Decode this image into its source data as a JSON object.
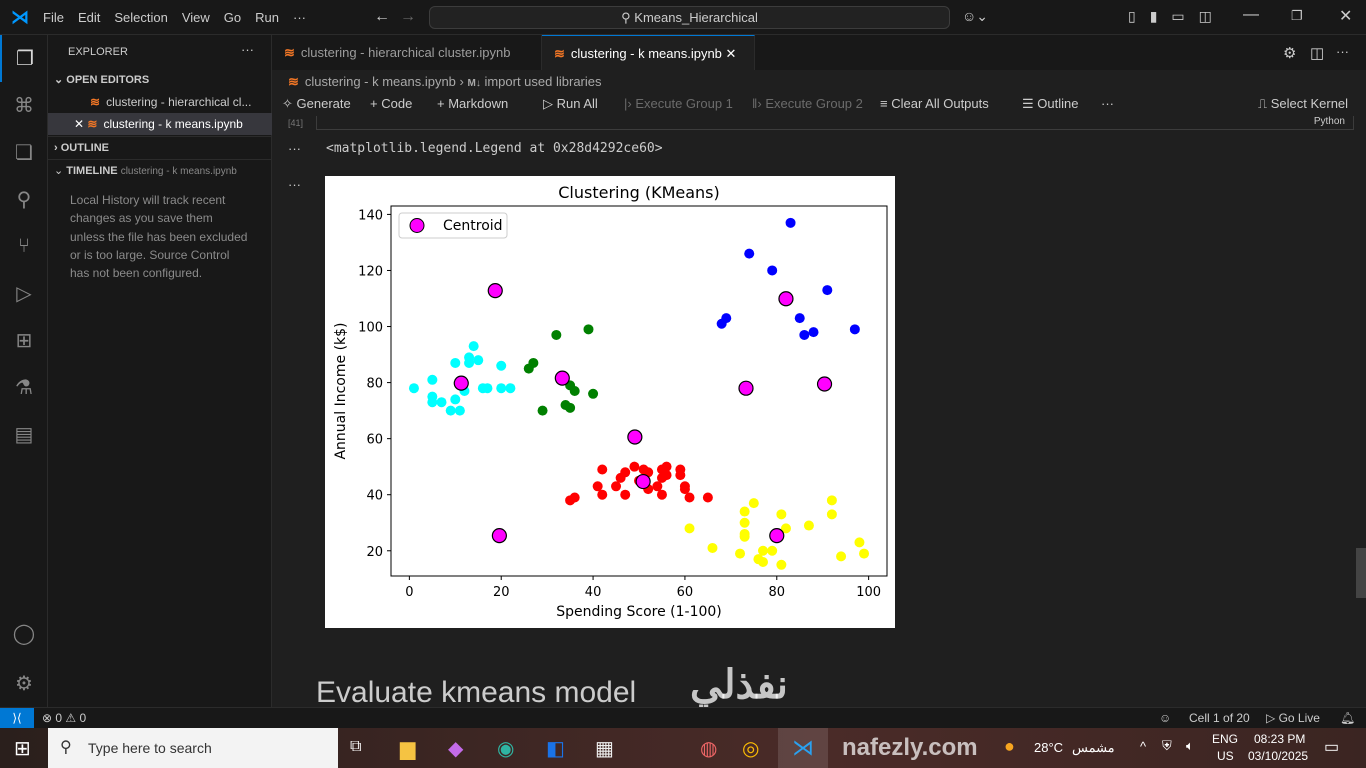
{
  "window": {
    "search_text": "Kmeans_Hierarchical",
    "menu": [
      "File",
      "Edit",
      "Selection",
      "View",
      "Go",
      "Run",
      "···"
    ]
  },
  "sidebar": {
    "title": "EXPLORER",
    "open_editors": "OPEN EDITORS",
    "files": [
      "clustering - hierarchical cl...",
      "clustering - k means.ipynb"
    ],
    "outline": "OUTLINE",
    "timeline": "TIMELINE",
    "timeline_file": "clustering - k means.ipynb",
    "timeline_msg": "Local History will track recent changes as you save them unless the file has been excluded or is too large. Source Control has not been configured."
  },
  "tabs": [
    {
      "label": "clustering - hierarchical cluster.ipynb"
    },
    {
      "label": "clustering - k means.ipynb"
    }
  ],
  "breadcrumb": {
    "file": "clustering - k means.ipynb",
    "section": "import used libraries",
    "md_icon": "M↓"
  },
  "toolbar": {
    "generate": "Generate",
    "code": "Code",
    "markdown": "Markdown",
    "run_all": "Run All",
    "exec1": "Execute Group 1",
    "exec2": "Execute Group 2",
    "clear": "Clear All Outputs",
    "outline": "Outline",
    "more": "···",
    "kernel": "Select Kernel",
    "lang": "Python"
  },
  "cell": {
    "exec_count": "[41]",
    "output_text": "<matplotlib.legend.Legend at 0x28d4292ce60>",
    "next_heading": "Evaluate kmeans model"
  },
  "statusbar": {
    "errors": "0",
    "warnings": "0",
    "cell": "Cell 1 of 20",
    "golive": "Go Live"
  },
  "taskbar": {
    "search": "Type here to search",
    "weather": "28°C",
    "weather_label": "مشمس",
    "lang1": "ENG",
    "lang2": "US",
    "time": "08:23 PM",
    "date": "03/10/2025"
  },
  "watermark": {
    "arabic": "نفذلي",
    "latin": "nafezly.com"
  },
  "colors": {
    "cyan": "#00ffff",
    "green": "#008000",
    "red": "#ff0000",
    "yellow": "#ffff00",
    "blue": "#0000ff",
    "centroid": "#ff00ff",
    "accent": "#0078d4"
  },
  "chart_data": {
    "type": "scatter",
    "title": "Clustering (KMeans)",
    "xlabel": "Spending Score (1-100)",
    "ylabel": "Annual Income (k$)",
    "xlim": [
      -4,
      104
    ],
    "ylim": [
      11,
      143
    ],
    "xticks": [
      0,
      20,
      40,
      60,
      80,
      100
    ],
    "yticks": [
      20,
      40,
      60,
      80,
      100,
      120,
      140
    ],
    "legend": {
      "position": "top-left",
      "entries": [
        "Centroid"
      ]
    },
    "series": [
      {
        "color": "#00ffff",
        "points": [
          [
            1,
            78
          ],
          [
            5,
            81
          ],
          [
            5,
            75
          ],
          [
            5,
            73
          ],
          [
            7,
            73
          ],
          [
            9,
            70
          ],
          [
            11,
            70
          ],
          [
            10,
            74
          ],
          [
            10,
            87
          ],
          [
            13,
            87
          ],
          [
            13,
            89
          ],
          [
            14,
            93
          ],
          [
            15,
            88
          ],
          [
            16,
            78
          ],
          [
            17,
            78
          ],
          [
            20,
            86
          ],
          [
            20,
            78
          ],
          [
            22,
            78
          ],
          [
            12,
            77
          ]
        ]
      },
      {
        "color": "#008000",
        "points": [
          [
            32,
            97
          ],
          [
            39,
            99
          ],
          [
            27,
            87
          ],
          [
            26,
            85
          ],
          [
            35,
            79
          ],
          [
            36,
            77
          ],
          [
            40,
            76
          ],
          [
            34,
            72
          ],
          [
            35,
            71
          ],
          [
            29,
            70
          ]
        ]
      },
      {
        "color": "#ff0000",
        "points": [
          [
            35,
            38
          ],
          [
            36,
            39
          ],
          [
            41,
            43
          ],
          [
            42,
            49
          ],
          [
            42,
            40
          ],
          [
            45,
            43
          ],
          [
            46,
            46
          ],
          [
            47,
            48
          ],
          [
            47,
            40
          ],
          [
            49,
            50
          ],
          [
            51,
            49
          ],
          [
            52,
            48
          ],
          [
            52,
            42
          ],
          [
            54,
            43
          ],
          [
            55,
            49
          ],
          [
            56,
            50
          ],
          [
            56,
            47
          ],
          [
            55,
            46
          ],
          [
            55,
            40
          ],
          [
            59,
            49
          ],
          [
            59,
            47
          ],
          [
            60,
            43
          ],
          [
            60,
            42
          ],
          [
            61,
            39
          ],
          [
            65,
            39
          ],
          [
            50,
            45
          ]
        ]
      },
      {
        "color": "#ffff00",
        "points": [
          [
            61,
            28
          ],
          [
            66,
            21
          ],
          [
            72,
            19
          ],
          [
            73,
            34
          ],
          [
            73,
            30
          ],
          [
            73,
            26
          ],
          [
            73,
            25
          ],
          [
            75,
            37
          ],
          [
            76,
            17
          ],
          [
            77,
            20
          ],
          [
            77,
            16
          ],
          [
            79,
            20
          ],
          [
            81,
            33
          ],
          [
            82,
            28
          ],
          [
            81,
            15
          ],
          [
            87,
            29
          ],
          [
            92,
            38
          ],
          [
            92,
            33
          ],
          [
            94,
            18
          ],
          [
            98,
            23
          ],
          [
            99,
            19
          ]
        ]
      },
      {
        "color": "#0000ff",
        "points": [
          [
            83,
            137
          ],
          [
            74,
            126
          ],
          [
            79,
            120
          ],
          [
            91,
            113
          ],
          [
            69,
            103
          ],
          [
            68,
            101
          ],
          [
            85,
            103
          ],
          [
            88,
            98
          ],
          [
            86,
            97
          ],
          [
            97,
            99
          ]
        ]
      },
      {
        "name": "Centroid",
        "color": "#ff00ff",
        "points": [
          [
            11.3,
            79.8
          ],
          [
            18.7,
            112.8
          ],
          [
            19.6,
            25.4
          ],
          [
            33.3,
            81.6
          ],
          [
            49.1,
            60.6
          ],
          [
            50.9,
            44.7
          ],
          [
            73.3,
            78
          ],
          [
            82,
            109.9
          ],
          [
            90.4,
            79.5
          ],
          [
            80,
            25.4
          ]
        ]
      }
    ]
  }
}
